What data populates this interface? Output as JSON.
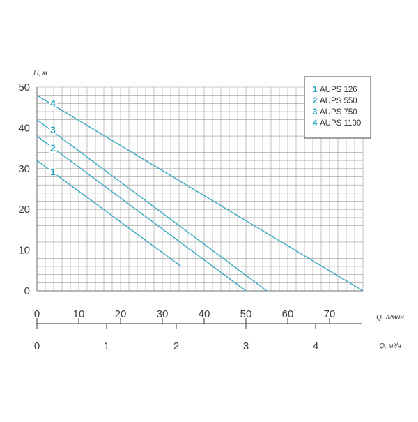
{
  "chart_data": {
    "type": "line",
    "title": "",
    "ylabel": "H, м",
    "xlabel": "Q, л/мин",
    "x2label": "Q, м³/ч",
    "xlim": [
      0,
      78
    ],
    "ylim": [
      0,
      50
    ],
    "x2lim": [
      0,
      4.68
    ],
    "x_ticks": [
      "0",
      "10",
      "20",
      "30",
      "40",
      "50",
      "60",
      "70"
    ],
    "x_tick_values": [
      0,
      10,
      20,
      30,
      40,
      50,
      60,
      70
    ],
    "y_ticks": [
      "0",
      "10",
      "20",
      "30",
      "40",
      "50"
    ],
    "y_tick_values": [
      0,
      10,
      20,
      30,
      40,
      50
    ],
    "x2_ticks": [
      "0",
      "1",
      "2",
      "3",
      "4"
    ],
    "x2_tick_values": [
      0,
      1,
      2,
      3,
      4
    ],
    "grid": true,
    "legend_position": "top-right",
    "series_color": "#3aa8c1",
    "label_color": "#2aa6c4",
    "series": [
      {
        "name": "AUPS 126",
        "number": "1",
        "x": [
          0,
          34.5
        ],
        "y": [
          32,
          6
        ]
      },
      {
        "name": "AUPS 550",
        "number": "2",
        "x": [
          0,
          50
        ],
        "y": [
          38,
          0
        ]
      },
      {
        "name": "AUPS 750",
        "number": "3",
        "x": [
          0,
          55
        ],
        "y": [
          42,
          0
        ]
      },
      {
        "name": "AUPS 1100",
        "number": "4",
        "x": [
          0,
          78
        ],
        "y": [
          48,
          0
        ]
      }
    ]
  }
}
